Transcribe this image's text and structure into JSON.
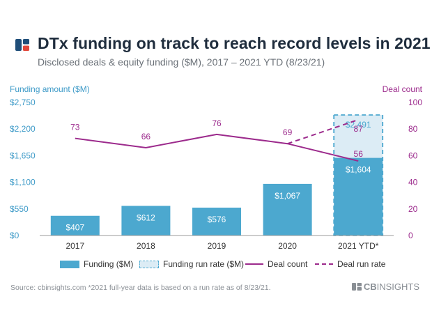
{
  "header": {
    "title": "DTx funding on track to reach record levels in 2021",
    "subtitle": "Disclosed deals & equity funding ($M), 2017 – 2021 YTD (8/23/21)"
  },
  "colors": {
    "bar": "#4ca8cf",
    "run_rate_fill": "#dcecf5",
    "line": "#9c2a8c",
    "left_axis": "#3f9bc8",
    "right_axis": "#9c2a8c",
    "logo_blue": "#1f4e79",
    "logo_red": "#e2473a"
  },
  "chart_data": {
    "type": "bar",
    "categories": [
      "2017",
      "2018",
      "2019",
      "2020",
      "2021 YTD*"
    ],
    "y_left": {
      "label": "Funding amount ($M)",
      "ylim": [
        0,
        2750
      ],
      "ticks": [
        0,
        550,
        1100,
        1650,
        2200,
        2750
      ],
      "tick_labels": [
        "$0",
        "$550",
        "$1,100",
        "$1,650",
        "$2,200",
        "$2,750"
      ]
    },
    "y_right": {
      "label": "Deal count",
      "ylim": [
        0,
        100
      ],
      "ticks": [
        0,
        20,
        40,
        60,
        80,
        100
      ],
      "tick_labels": [
        "0",
        "20",
        "40",
        "60",
        "80",
        "100"
      ]
    },
    "series": [
      {
        "name": "Funding ($M)",
        "type": "bar",
        "axis": "left",
        "values": [
          407,
          612,
          576,
          1067,
          1604
        ],
        "labels": [
          "$407",
          "$612",
          "$576",
          "$1,067",
          "$1,604"
        ]
      },
      {
        "name": "Funding run rate ($M)",
        "type": "bar-dashed",
        "axis": "left",
        "values": [
          null,
          null,
          null,
          null,
          2491
        ],
        "labels": [
          "",
          "",
          "",
          "",
          "$2,491"
        ]
      },
      {
        "name": "Deal count",
        "type": "line",
        "axis": "right",
        "values": [
          73,
          66,
          76,
          69,
          56
        ],
        "labels": [
          "73",
          "66",
          "76",
          "69",
          "56"
        ]
      },
      {
        "name": "Deal run rate",
        "type": "line-dashed",
        "axis": "right",
        "values": [
          null,
          null,
          null,
          69,
          87
        ],
        "labels": [
          "",
          "",
          "",
          "",
          "87"
        ]
      }
    ],
    "grid": false,
    "legend": "bottom"
  },
  "footer": {
    "source": "Source: cbinsights.com  *2021 full-year data is based on a run rate as of 8/23/21.",
    "brand_prefix": "CB",
    "brand_suffix": "INSIGHTS"
  }
}
